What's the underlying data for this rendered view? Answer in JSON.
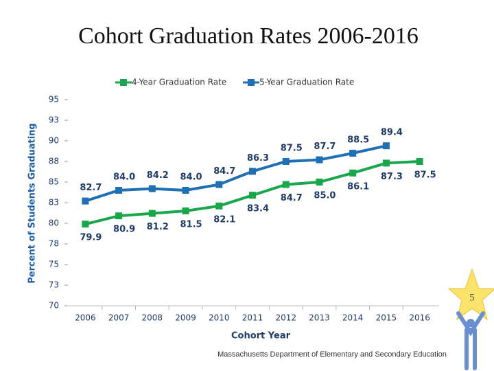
{
  "chart_data": {
    "type": "line",
    "title": "Cohort Graduation Rates 2006-2016",
    "x_label": "Cohort Year",
    "y_label": "Percent of Students Graduating",
    "categories": [
      "2006",
      "2007",
      "2008",
      "2009",
      "2010",
      "2011",
      "2012",
      "2013",
      "2014",
      "2015",
      "2016"
    ],
    "series": [
      {
        "name": "4-Year Graduation Rate",
        "color": "#1aa64a",
        "values": [
          79.9,
          80.9,
          81.2,
          81.5,
          82.1,
          83.4,
          84.7,
          85.0,
          86.1,
          87.3,
          87.5
        ],
        "value_labels": [
          "79.9",
          "80.9",
          "81.2",
          "81.5",
          "82.1",
          "83.4",
          "84.7",
          "85.0",
          "86.1",
          "87.3",
          "87.5"
        ]
      },
      {
        "name": "5-Year Graduation Rate",
        "color": "#1f6fb5",
        "values": [
          82.7,
          84.0,
          84.2,
          84.0,
          84.7,
          86.3,
          87.5,
          87.7,
          88.5,
          89.4,
          null
        ],
        "value_labels": [
          "82.7",
          "84.0",
          "84.2",
          "84.0",
          "84.7",
          "86.3",
          "87.5",
          "87.7",
          "88.5",
          "89.4",
          null
        ]
      }
    ],
    "ylim": [
      70,
      95
    ],
    "yticks": [
      70,
      {
        "value": 72.5,
        "label": "73"
      },
      75,
      {
        "value": 77.5,
        "label": "78"
      },
      80,
      {
        "value": 82.5,
        "label": "83"
      },
      85,
      {
        "value": 87.5,
        "label": "88"
      },
      90,
      {
        "value": 92.5,
        "label": "93"
      },
      95
    ],
    "legend": "top"
  },
  "slide_number": "5",
  "footer": "Massachusetts Department of Elementary and Secondary Education"
}
